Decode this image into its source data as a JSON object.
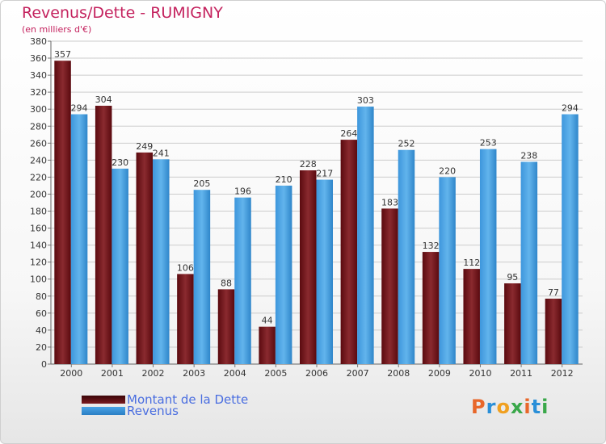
{
  "title": "Revenus/Dette - RUMIGNY",
  "subtitle": "(en milliers d'€)",
  "logo": "Proxiti",
  "colors": {
    "dette": "#6b0f14",
    "dette_light": "#9b3a3e",
    "revenus": "#2a7fc4",
    "revenus_light": "#5aaee8",
    "title": "#c4225e",
    "grid": "#cccccc"
  },
  "chart_data": {
    "type": "bar",
    "categories": [
      "2000",
      "2001",
      "2002",
      "2003",
      "2004",
      "2005",
      "2006",
      "2007",
      "2008",
      "2009",
      "2010",
      "2011",
      "2012"
    ],
    "series": [
      {
        "name": "Montant de la Dette",
        "values": [
          357,
          304,
          249,
          106,
          88,
          44,
          228,
          264,
          183,
          132,
          112,
          95,
          77
        ]
      },
      {
        "name": "Revenus",
        "values": [
          294,
          230,
          241,
          205,
          196,
          210,
          217,
          303,
          252,
          220,
          253,
          238,
          294
        ]
      }
    ],
    "ylim": [
      0,
      380
    ],
    "yticks": [
      0,
      20,
      40,
      60,
      80,
      100,
      120,
      140,
      160,
      180,
      200,
      220,
      240,
      260,
      280,
      300,
      320,
      340,
      360,
      380
    ],
    "grid": true,
    "legend_position": "bottom-left"
  }
}
